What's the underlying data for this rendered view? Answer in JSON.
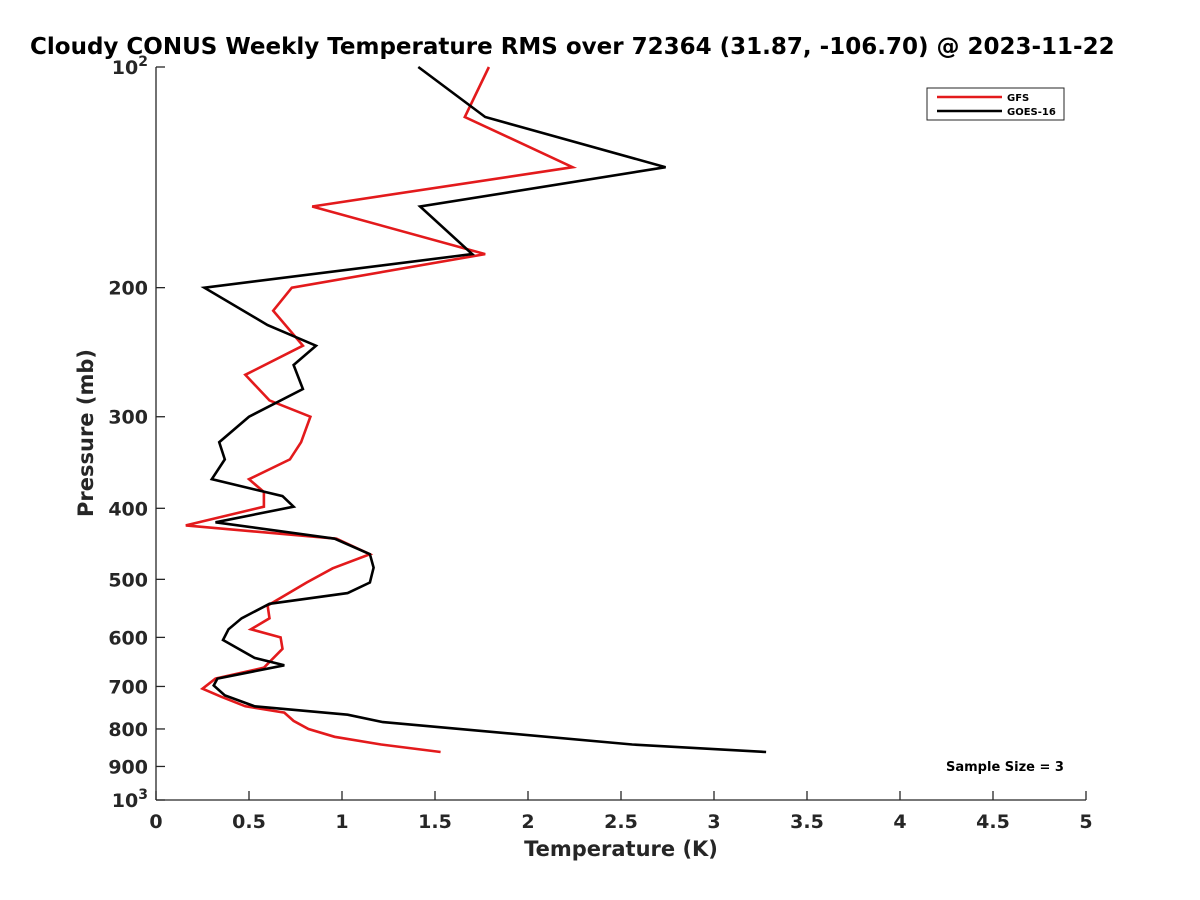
{
  "chart_data": {
    "type": "line",
    "title": "Cloudy CONUS Weekly Temperature RMS over 72364 (31.87, -106.70) @ 2023-11-22",
    "xlabel": "Temperature (K)",
    "ylabel": "Pressure (mb)",
    "xlim": [
      0,
      5
    ],
    "ylim": [
      100,
      1000
    ],
    "y_scale": "log",
    "y_reversed": true,
    "grid": false,
    "legend_position": "top-right",
    "x_ticks": [
      {
        "value": 0,
        "label": "0"
      },
      {
        "value": 0.5,
        "label": "0.5"
      },
      {
        "value": 1,
        "label": "1"
      },
      {
        "value": 1.5,
        "label": "1.5"
      },
      {
        "value": 2,
        "label": "2"
      },
      {
        "value": 2.5,
        "label": "2.5"
      },
      {
        "value": 3,
        "label": "3"
      },
      {
        "value": 3.5,
        "label": "3.5"
      },
      {
        "value": 4,
        "label": "4"
      },
      {
        "value": 4.5,
        "label": "4.5"
      },
      {
        "value": 5,
        "label": "5"
      }
    ],
    "y_ticks": [
      {
        "value": 100,
        "base": "10",
        "exp": "2"
      },
      {
        "value": 200,
        "label": "200"
      },
      {
        "value": 300,
        "label": "300"
      },
      {
        "value": 400,
        "label": "400"
      },
      {
        "value": 500,
        "label": "500"
      },
      {
        "value": 600,
        "label": "600"
      },
      {
        "value": 700,
        "label": "700"
      },
      {
        "value": 800,
        "label": "800"
      },
      {
        "value": 900,
        "label": "900"
      },
      {
        "value": 1000,
        "base": "10",
        "exp": "3"
      }
    ],
    "series": [
      {
        "name": "GFS",
        "color": "#e31a1c",
        "points": [
          [
            1.79,
            100
          ],
          [
            1.66,
            117
          ],
          [
            2.24,
            137
          ],
          [
            0.84,
            155
          ],
          [
            1.77,
            180
          ],
          [
            0.73,
            200
          ],
          [
            0.63,
            215
          ],
          [
            0.79,
            240
          ],
          [
            0.48,
            263
          ],
          [
            0.61,
            285
          ],
          [
            0.83,
            300
          ],
          [
            0.78,
            325
          ],
          [
            0.72,
            343
          ],
          [
            0.5,
            365
          ],
          [
            0.58,
            380
          ],
          [
            0.58,
            398
          ],
          [
            0.16,
            422
          ],
          [
            0.97,
            440
          ],
          [
            1.15,
            462
          ],
          [
            0.95,
            483
          ],
          [
            0.81,
            505
          ],
          [
            0.6,
            543
          ],
          [
            0.61,
            565
          ],
          [
            0.51,
            585
          ],
          [
            0.67,
            600
          ],
          [
            0.68,
            622
          ],
          [
            0.58,
            660
          ],
          [
            0.32,
            683
          ],
          [
            0.25,
            705
          ],
          [
            0.35,
            723
          ],
          [
            0.48,
            745
          ],
          [
            0.69,
            760
          ],
          [
            0.74,
            780
          ],
          [
            0.82,
            800
          ],
          [
            0.96,
            820
          ],
          [
            1.21,
            840
          ],
          [
            1.53,
            860
          ]
        ]
      },
      {
        "name": "GOES-16",
        "color": "#000000",
        "points": [
          [
            1.41,
            100
          ],
          [
            1.77,
            117
          ],
          [
            2.74,
            137
          ],
          [
            1.42,
            155
          ],
          [
            1.7,
            180
          ],
          [
            0.26,
            200
          ],
          [
            0.6,
            225
          ],
          [
            0.86,
            240
          ],
          [
            0.74,
            255
          ],
          [
            0.79,
            275
          ],
          [
            0.5,
            300
          ],
          [
            0.34,
            325
          ],
          [
            0.37,
            343
          ],
          [
            0.3,
            365
          ],
          [
            0.68,
            385
          ],
          [
            0.74,
            398
          ],
          [
            0.32,
            418
          ],
          [
            0.96,
            440
          ],
          [
            1.15,
            462
          ],
          [
            1.17,
            482
          ],
          [
            1.15,
            505
          ],
          [
            1.03,
            522
          ],
          [
            0.61,
            540
          ],
          [
            0.46,
            565
          ],
          [
            0.39,
            585
          ],
          [
            0.36,
            605
          ],
          [
            0.53,
            640
          ],
          [
            0.69,
            655
          ],
          [
            0.33,
            683
          ],
          [
            0.31,
            698
          ],
          [
            0.37,
            720
          ],
          [
            0.53,
            745
          ],
          [
            1.03,
            765
          ],
          [
            1.22,
            783
          ],
          [
            2.56,
            840
          ],
          [
            3.28,
            860
          ]
        ]
      }
    ],
    "annotation": "Sample Size = 3"
  }
}
